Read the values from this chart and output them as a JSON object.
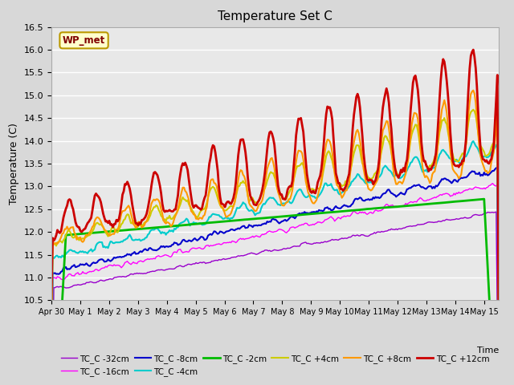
{
  "title": "Temperature Set C",
  "xlabel": "Time",
  "ylabel": "Temperature (C)",
  "ylim": [
    10.5,
    16.5
  ],
  "yticks": [
    10.5,
    11.0,
    11.5,
    12.0,
    12.5,
    13.0,
    13.5,
    14.0,
    14.5,
    15.0,
    15.5,
    16.0,
    16.5
  ],
  "plot_bg_color": "#e8e8e8",
  "fig_bg_color": "#d8d8d8",
  "wp_met_label": "WP_met",
  "wp_met_bg": "#ffffcc",
  "wp_met_fg": "#800000",
  "legend_labels": [
    "TC_C -32cm",
    "TC_C -16cm",
    "TC_C -8cm",
    "TC_C -4cm",
    "TC_C -2cm",
    "TC_C +4cm",
    "TC_C +8cm",
    "TC_C +12cm"
  ],
  "line_colors": [
    "#9900cc",
    "#ff00ff",
    "#0000cc",
    "#00cccc",
    "#00bb00",
    "#cccc00",
    "#ff9900",
    "#cc0000"
  ],
  "line_widths": [
    1.0,
    1.0,
    1.5,
    1.5,
    2.0,
    1.5,
    1.5,
    2.0
  ],
  "date_labels": [
    "Apr 30",
    "May 1",
    "May 2",
    "May 3",
    "May 4",
    "May 5",
    "May 6",
    "May 7",
    "May 8",
    "May 9",
    "May 10",
    "May 11",
    "May 12",
    "May 13",
    "May 14",
    "May 15"
  ]
}
